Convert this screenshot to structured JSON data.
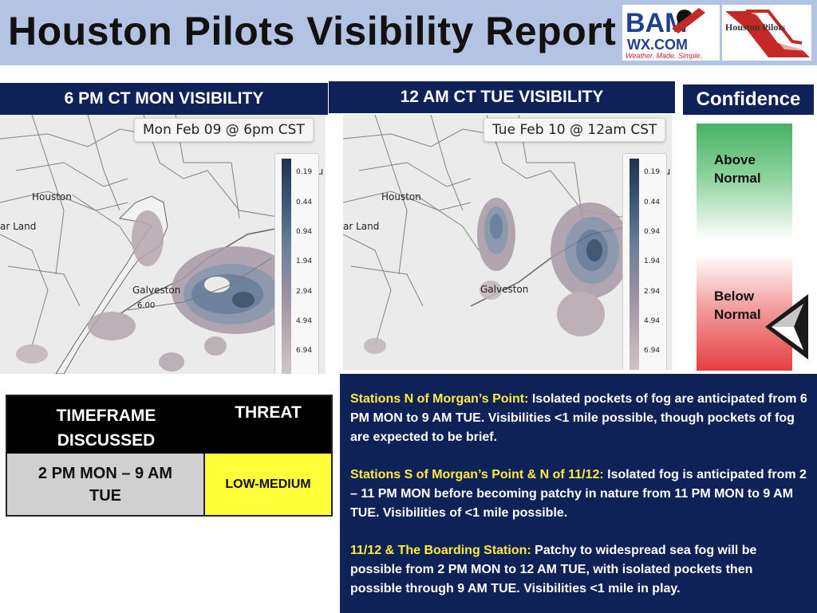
{
  "header": {
    "title": "Houston Pilots Visibility Report",
    "bam_logo": {
      "top": "BAM",
      "bottom": "WX.COM",
      "tagline": "Weather. Made. Simple."
    },
    "hp_logo": {
      "text": "Houston Pilots"
    }
  },
  "panels": [
    {
      "title": "6 PM CT MON VISIBILITY",
      "date": "Mon Feb 09 @ 6pm CST",
      "contour_label": "6.00"
    },
    {
      "title": "12 AM CT TUE VISIBILITY",
      "date": "Tue Feb 10 @ 12am CST"
    }
  ],
  "map_labels": {
    "city1": "Houston",
    "city2": "ar Land",
    "city3": "Galveston",
    "edge": "hu"
  },
  "legend_ticks": [
    "0.19",
    "0.44",
    "0.94",
    "1.94",
    "2.94",
    "4.94",
    "6.94"
  ],
  "confidence": {
    "title": "Confidence",
    "above": [
      "Above",
      "Normal"
    ],
    "below": [
      "Below",
      "Normal"
    ],
    "level": "Below Normal"
  },
  "table": {
    "header_timeframe": [
      "TIMEFRAME",
      "DISCUSSED"
    ],
    "header_threat": "THREAT",
    "timeframe": [
      "2 PM MON – 9 AM",
      "TUE"
    ],
    "threat": "LOW-MEDIUM",
    "threat_color": "#ffff3a"
  },
  "info": [
    {
      "heading": "Stations N of Morgan’s Point:",
      "text": " Isolated pockets of fog are anticipated from 6 PM MON to 9 AM TUE. Visibilities <1 mile possible, though pockets of fog are expected to be brief."
    },
    {
      "heading": "Stations S of Morgan’s Point & N of 11/12:",
      "text": " Isolated fog is anticipated from 2 – 11 PM MON before becoming patchy in nature from 11 PM MON to 9 AM TUE. Visibilities of <1 mile possible."
    },
    {
      "heading": "11/12 & The Boarding Station:",
      "text": " Patchy to widespread sea fog will be possible from 2 PM MON to 12 AM TUE, with isolated pockets then possible through 9 AM TUE. Visibilities <1 mile in play."
    }
  ],
  "colors": {
    "header_bg": "#b3c3e4",
    "navy": "#0f2258",
    "highlight": "#ffeb3b"
  }
}
